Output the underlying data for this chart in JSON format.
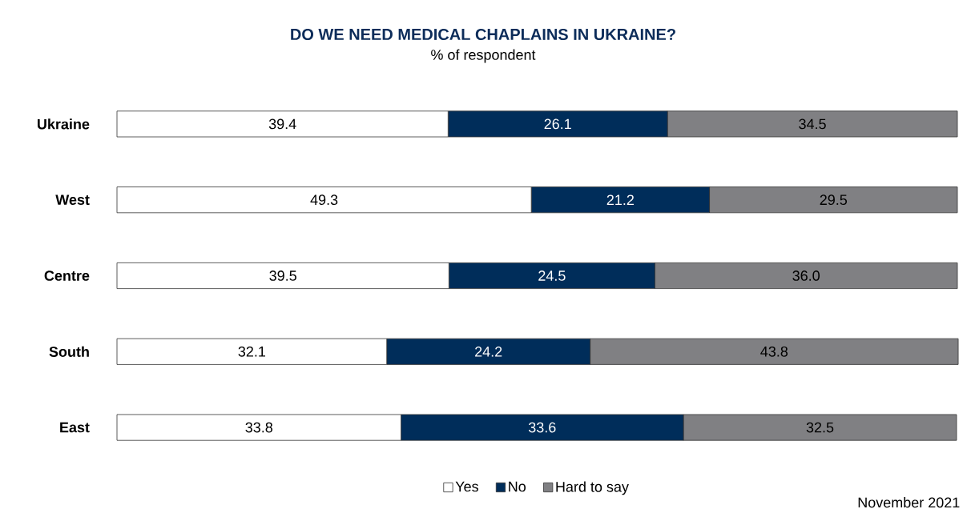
{
  "chart_data": {
    "type": "bar",
    "orientation": "horizontal",
    "stacked": true,
    "title": "DO WE NEED MEDICAL CHAPLAINS IN UKRAINE?",
    "subtitle": "% of respondent",
    "categories": [
      "Ukraine",
      "West",
      "Centre",
      "South",
      "East"
    ],
    "xlim": [
      0,
      100
    ],
    "series": [
      {
        "name": "Yes",
        "color": "#ffffff",
        "values": [
          39.4,
          49.3,
          39.5,
          32.1,
          33.8
        ],
        "value_labels": [
          "39.4",
          "49.3",
          "39.5",
          "32.1",
          "33.8"
        ]
      },
      {
        "name": "No",
        "color": "#002d5a",
        "values": [
          26.1,
          21.2,
          24.5,
          24.2,
          33.6
        ],
        "value_labels": [
          "26.1",
          "21.2",
          "24.5",
          "24.2",
          "33.6"
        ]
      },
      {
        "name": "Hard to say",
        "color": "#808083",
        "values": [
          34.5,
          29.5,
          36.0,
          43.8,
          32.5
        ],
        "value_labels": [
          "34.5",
          "29.5",
          "36.0",
          "43.8",
          "32.5"
        ]
      }
    ],
    "legend": "bottom",
    "annotations": [
      "November 2021"
    ]
  }
}
